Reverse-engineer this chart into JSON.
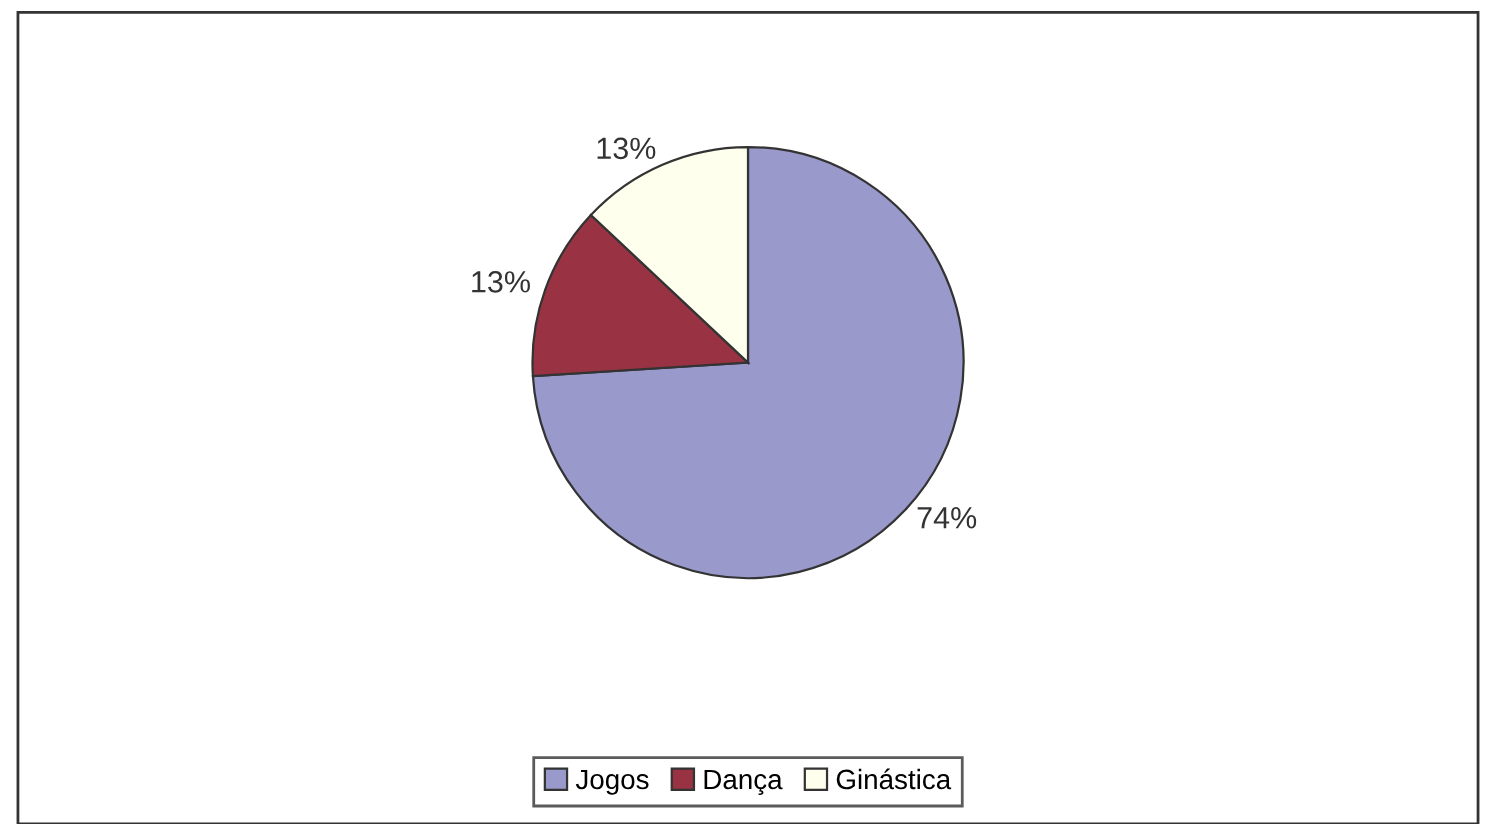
{
  "chart_data": {
    "type": "pie",
    "categories": [
      "Jogos",
      "Dança",
      "Ginástica"
    ],
    "values": [
      74,
      13,
      13
    ],
    "colors": [
      "#9999cc",
      "#993344",
      "#ffffee"
    ],
    "value_labels": [
      "74%",
      "13%",
      "13%"
    ],
    "legend": "bottom"
  }
}
